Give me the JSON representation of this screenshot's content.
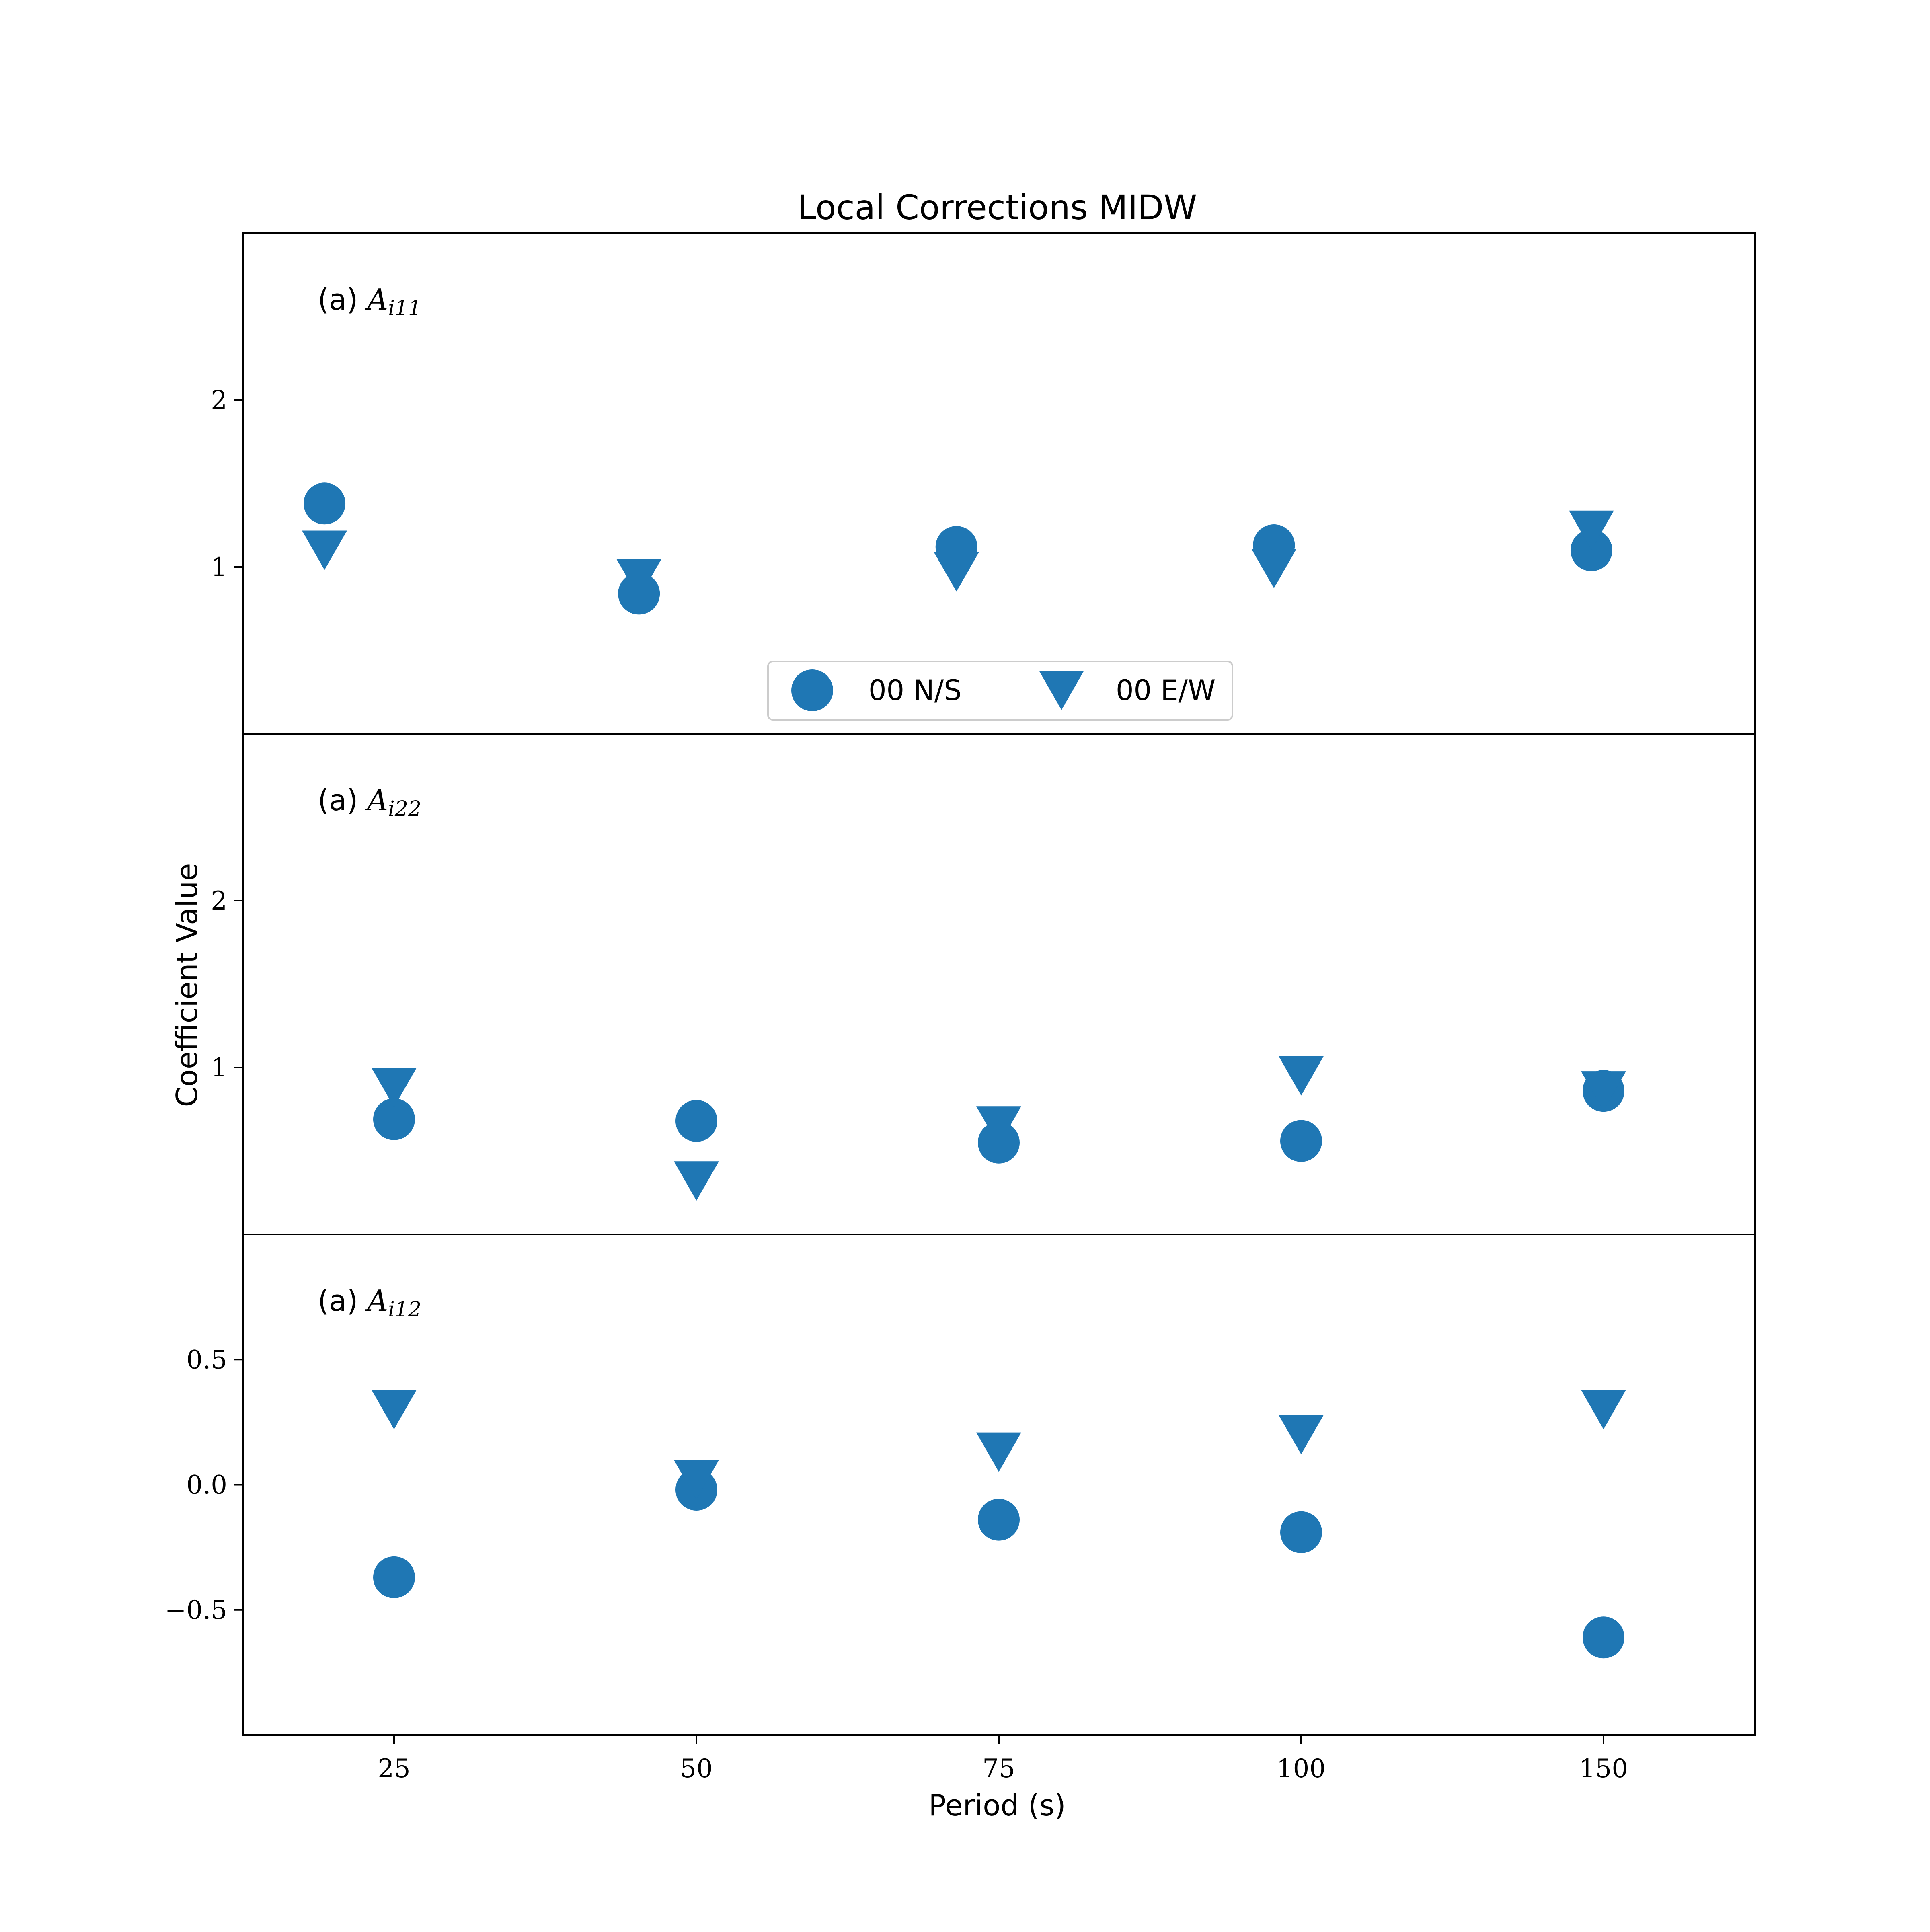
{
  "chart_data": {
    "type": "scatter",
    "title": "Local Corrections MIDW",
    "xlabel": "Period (s)",
    "ylabel": "Coefficient Value",
    "categories": [
      "25",
      "50",
      "75",
      "100",
      "150"
    ],
    "colors": {
      "marker": "#1f77b4"
    },
    "legend": {
      "location": "lower center of top panel",
      "entries": [
        {
          "name": "00 N/S",
          "marker": "circle"
        },
        {
          "name": "00 E/W",
          "marker": "triangle-down"
        }
      ]
    },
    "panels": [
      {
        "label_prefix": "(a)",
        "label_symbol": "A",
        "label_subscript": "i11",
        "ylim": [
          0,
          3
        ],
        "yticks": [
          1,
          2
        ],
        "ytick_labels": [
          "1",
          "2"
        ],
        "series": [
          {
            "name": "00 N/S",
            "marker": "circle",
            "x": [
              -0.23,
              0.81,
              1.86,
              2.91,
              3.96
            ],
            "values": [
              1.38,
              0.84,
              1.12,
              1.13,
              1.1
            ]
          },
          {
            "name": "00 E/W",
            "marker": "triangle-down",
            "x": [
              -0.23,
              0.81,
              1.86,
              2.91,
              3.96
            ],
            "values": [
              1.1,
              0.93,
              0.97,
              0.99,
              1.22
            ]
          }
        ]
      },
      {
        "label_prefix": "(a)",
        "label_symbol": "A",
        "label_subscript": "i22",
        "ylim": [
          0,
          3
        ],
        "yticks": [
          1,
          2
        ],
        "ytick_labels": [
          "1",
          "2"
        ],
        "series": [
          {
            "name": "00 N/S",
            "marker": "circle",
            "x": [
              0,
              1,
              2,
              3,
              4
            ],
            "values": [
              0.69,
              0.68,
              0.55,
              0.56,
              0.86
            ]
          },
          {
            "name": "00 E/W",
            "marker": "triangle-down",
            "x": [
              0,
              1,
              2,
              3,
              4
            ],
            "values": [
              0.88,
              0.32,
              0.65,
              0.95,
              0.86
            ]
          }
        ]
      },
      {
        "label_prefix": "(a)",
        "label_symbol": "A",
        "label_subscript": "i12",
        "ylim": [
          -1.0,
          1.0
        ],
        "yticks": [
          0.5,
          0.0,
          -0.5
        ],
        "ytick_labels": [
          "0.5",
          "0.0",
          "−0.5"
        ],
        "series": [
          {
            "name": "00 N/S",
            "marker": "circle",
            "x": [
              0,
              1,
              2,
              3,
              4
            ],
            "values": [
              -0.37,
              -0.02,
              -0.14,
              -0.19,
              -0.61
            ]
          },
          {
            "name": "00 E/W",
            "marker": "triangle-down",
            "x": [
              0,
              1,
              2,
              3,
              4
            ],
            "values": [
              0.3,
              0.02,
              0.13,
              0.2,
              0.3
            ]
          }
        ]
      }
    ]
  }
}
